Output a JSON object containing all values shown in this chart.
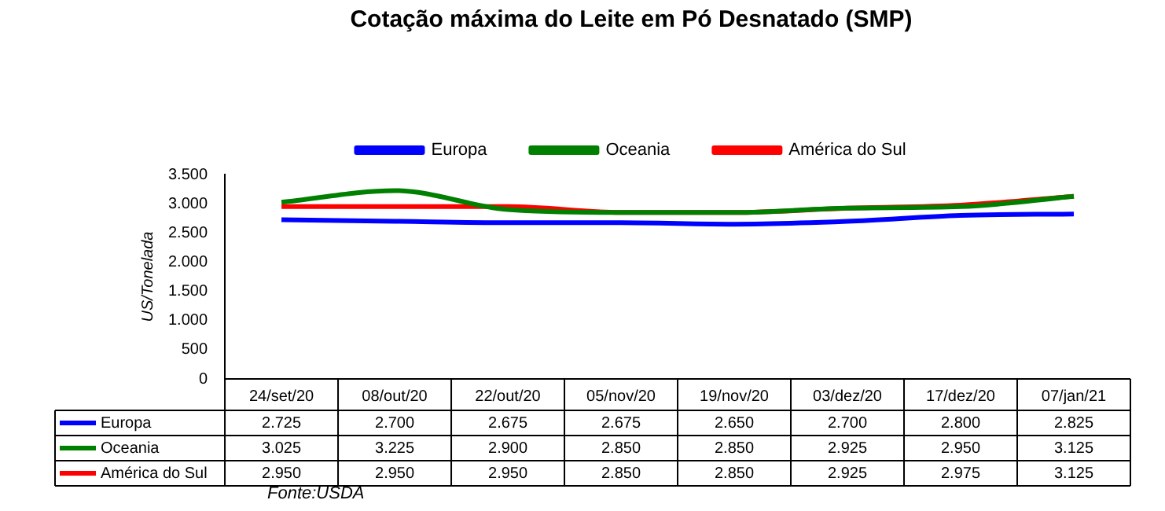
{
  "chart_data": {
    "type": "line",
    "title": "Cotação máxima do Leite em Pó Desnatado (SMP)",
    "ylabel": "US/Tonelada",
    "categories": [
      "24/set/20",
      "08/out/20",
      "22/out/20",
      "05/nov/20",
      "19/nov/20",
      "03/dez/20",
      "17/dez/20",
      "07/jan/21"
    ],
    "series": [
      {
        "name": "Europa",
        "color": "#0000ff",
        "values": [
          2725,
          2700,
          2675,
          2675,
          2650,
          2700,
          2800,
          2825
        ],
        "value_labels": [
          "2.725",
          "2.700",
          "2.675",
          "2.675",
          "2.650",
          "2.700",
          "2.800",
          "2.825"
        ]
      },
      {
        "name": "Oceania",
        "color": "#008000",
        "values": [
          3025,
          3225,
          2900,
          2850,
          2850,
          2925,
          2950,
          3125
        ],
        "value_labels": [
          "3.025",
          "3.225",
          "2.900",
          "2.850",
          "2.850",
          "2.925",
          "2.950",
          "3.125"
        ]
      },
      {
        "name": "América do Sul",
        "color": "#ff0000",
        "values": [
          2950,
          2950,
          2950,
          2850,
          2850,
          2925,
          2975,
          3125
        ],
        "value_labels": [
          "2.950",
          "2.950",
          "2.950",
          "2.850",
          "2.850",
          "2.925",
          "2.975",
          "3.125"
        ]
      }
    ],
    "ylim": [
      0,
      3500
    ],
    "yticks": [
      {
        "value": 0,
        "label": "0"
      },
      {
        "value": 500,
        "label": "500"
      },
      {
        "value": 1000,
        "label": "1.000"
      },
      {
        "value": 1500,
        "label": "1.500"
      },
      {
        "value": 2000,
        "label": "2.000"
      },
      {
        "value": 2500,
        "label": "2.500"
      },
      {
        "value": 3000,
        "label": "3.000"
      },
      {
        "value": 3500,
        "label": "3.500"
      }
    ],
    "grid": false,
    "legend": "top",
    "marker": "none",
    "line_style": "solid",
    "annotations": [
      "Fonte:USDA"
    ]
  }
}
